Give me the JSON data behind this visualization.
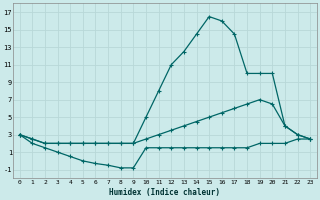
{
  "xlabel": "Humidex (Indice chaleur)",
  "bg_color": "#cceaea",
  "line_color": "#006666",
  "grid_color": "#b8d8d8",
  "xlim": [
    -0.5,
    23.5
  ],
  "ylim": [
    -2,
    18
  ],
  "xticks": [
    0,
    1,
    2,
    3,
    4,
    5,
    6,
    7,
    8,
    9,
    10,
    11,
    12,
    13,
    14,
    15,
    16,
    17,
    18,
    19,
    20,
    21,
    22,
    23
  ],
  "yticks": [
    -1,
    1,
    3,
    5,
    7,
    9,
    11,
    13,
    15,
    17
  ],
  "line_peak_x": [
    0,
    1,
    2,
    3,
    4,
    5,
    6,
    7,
    8,
    9,
    10,
    11,
    12,
    13,
    14,
    15,
    16,
    17,
    18,
    19,
    20,
    21,
    22,
    23
  ],
  "line_peak_y": [
    3,
    2.5,
    2,
    2,
    2,
    2,
    2,
    2,
    2,
    2,
    5,
    8,
    11,
    12.5,
    14.5,
    16.5,
    16,
    14.5,
    10,
    10,
    10,
    4,
    3,
    2.5
  ],
  "line_mid_x": [
    0,
    1,
    2,
    3,
    4,
    5,
    6,
    7,
    8,
    9,
    10,
    11,
    12,
    13,
    14,
    15,
    16,
    17,
    18,
    19,
    20,
    21,
    22,
    23
  ],
  "line_mid_y": [
    3,
    2.5,
    2,
    2,
    2,
    2,
    2,
    2,
    2,
    2,
    2.5,
    3,
    3.5,
    4,
    4.5,
    5,
    5.5,
    6,
    6.5,
    7,
    6.5,
    4,
    3,
    2.5
  ],
  "line_low_x": [
    0,
    1,
    2,
    3,
    4,
    5,
    6,
    7,
    8,
    9,
    10,
    11,
    12,
    13,
    14,
    15,
    16,
    17,
    18,
    19,
    20,
    21,
    22,
    23
  ],
  "line_low_y": [
    3,
    2,
    1.5,
    1,
    0.5,
    0,
    -0.3,
    -0.5,
    -0.8,
    -0.8,
    1.5,
    1.5,
    1.5,
    1.5,
    1.5,
    1.5,
    1.5,
    1.5,
    1.5,
    2,
    2,
    2,
    2.5,
    2.5
  ],
  "figsize": [
    3.2,
    2.0
  ],
  "dpi": 100
}
